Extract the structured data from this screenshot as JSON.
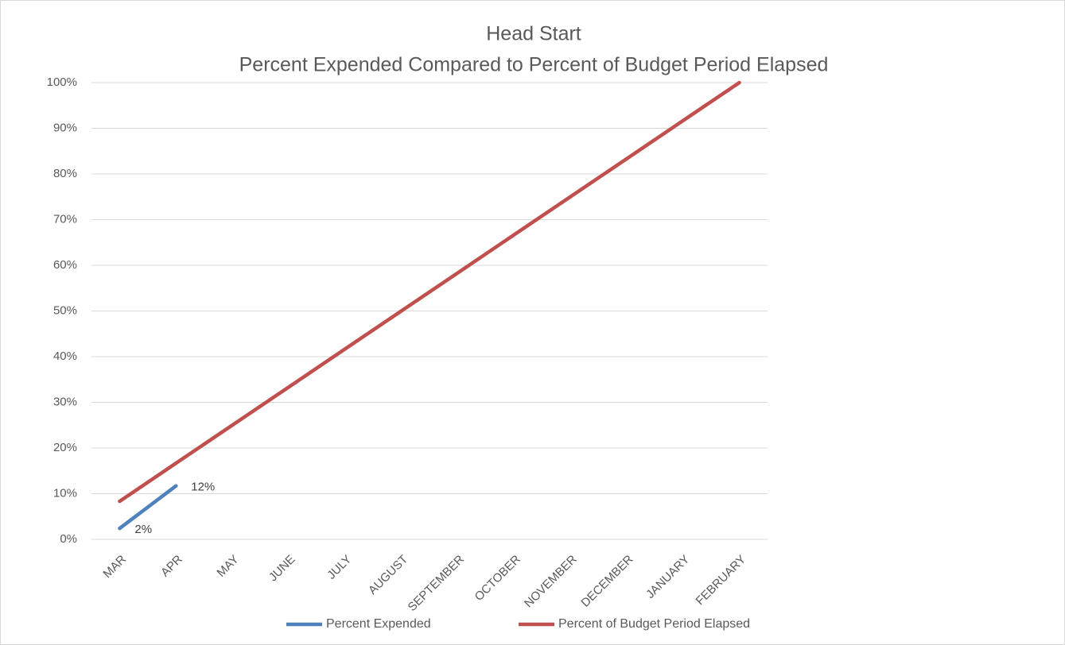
{
  "chart_data": {
    "type": "line",
    "title": [
      "Head Start",
      "Percent Expended Compared to Percent of Budget Period Elapsed"
    ],
    "categories": [
      "MAR",
      "APR",
      "MAY",
      "JUNE",
      "JULY",
      "AUGUST",
      "SEPTEMBER",
      "OCTOBER",
      "NOVEMBER",
      "DECEMBER",
      "JANUARY",
      "FEBRUARY"
    ],
    "series": [
      {
        "name": "Percent Expended",
        "color": "#4f81bd",
        "values": [
          2.4,
          11.7,
          null,
          null,
          null,
          null,
          null,
          null,
          null,
          null,
          null,
          null
        ],
        "value_labels": [
          "2%",
          "12%",
          null,
          null,
          null,
          null,
          null,
          null,
          null,
          null,
          null,
          null
        ]
      },
      {
        "name": "Percent of Budget Period Elapsed",
        "color": "#c0504d",
        "values": [
          8.33,
          16.67,
          25,
          33.33,
          41.67,
          50,
          58.33,
          66.67,
          75,
          83.33,
          91.67,
          100
        ]
      }
    ],
    "ylim": [
      0,
      100
    ],
    "yticks": [
      {
        "value": 0,
        "label": "0%"
      },
      {
        "value": 10,
        "label": "10%"
      },
      {
        "value": 20,
        "label": "20%"
      },
      {
        "value": 30,
        "label": "30%"
      },
      {
        "value": 40,
        "label": "40%"
      },
      {
        "value": 50,
        "label": "50%"
      },
      {
        "value": 60,
        "label": "60%"
      },
      {
        "value": 70,
        "label": "70%"
      },
      {
        "value": 80,
        "label": "80%"
      },
      {
        "value": 90,
        "label": "90%"
      },
      {
        "value": 100,
        "label": "100%"
      }
    ],
    "grid": true,
    "legend": "bottom"
  }
}
